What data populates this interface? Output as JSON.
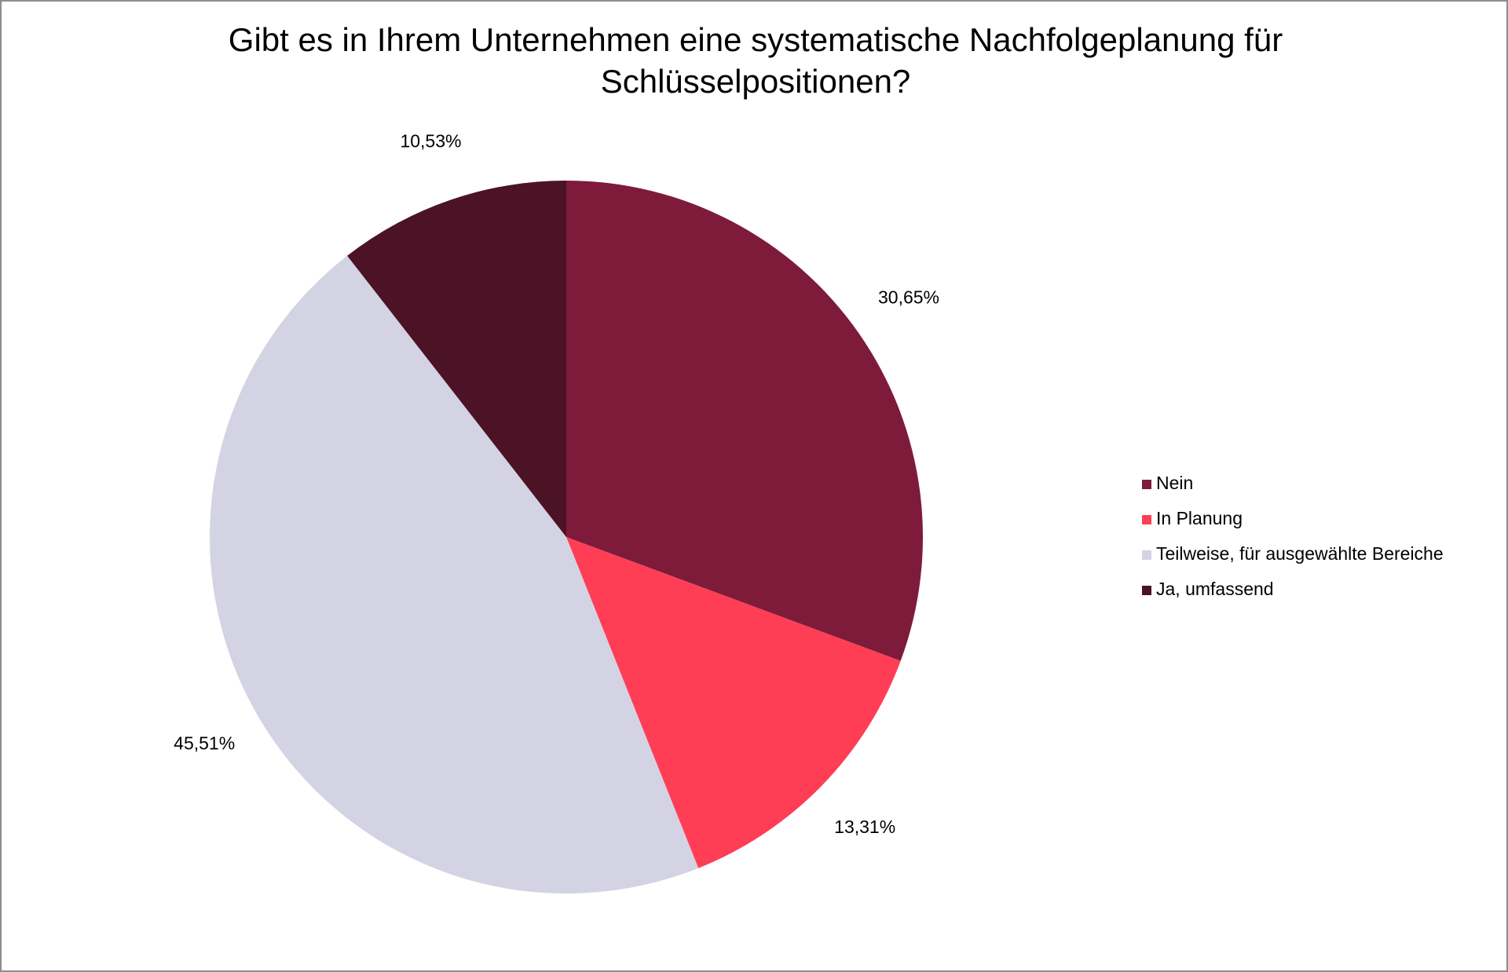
{
  "chart_data": {
    "type": "pie",
    "title": "Gibt es in Ihrem Unternehmen eine systematische Nachfolgeplanung für Schlüsselpositionen?",
    "categories": [
      "Nein",
      "In Planung",
      "Teilweise, für ausgewählte Bereiche",
      "Ja, umfassend"
    ],
    "values": [
      30.65,
      13.31,
      45.51,
      10.53
    ],
    "value_labels": [
      "30,65%",
      "13,31%",
      "45,51%",
      "10,53%"
    ],
    "colors": [
      "#7e1b3b",
      "#ff3e55",
      "#d3d3e3",
      "#4c1225"
    ],
    "legend": "right"
  }
}
